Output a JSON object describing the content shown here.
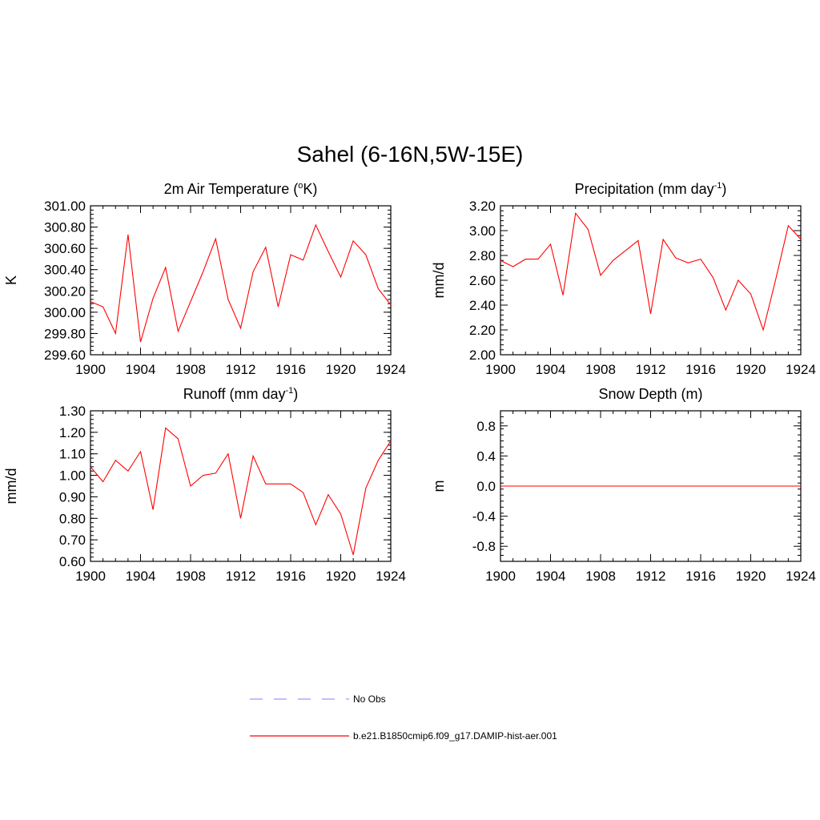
{
  "figure_title": "Sahel (6-16N,5W-15E)",
  "colors": {
    "model": "#ff0000",
    "obs": "#9999ff",
    "axis": "#000000"
  },
  "legend": {
    "items": [
      {
        "label": "No Obs",
        "style": "dashed",
        "color": "#9999ff"
      },
      {
        "label": "b.e21.B1850cmip6.f09_g17.DAMIP-hist-aer.001",
        "style": "solid",
        "color": "#ff0000"
      }
    ]
  },
  "chart_data": [
    {
      "type": "line",
      "title": "2m Air Temperature (",
      "title_sup": "o",
      "title_suffix": "K)",
      "ylabel": "K",
      "xlim": [
        1900,
        1924
      ],
      "ylim": [
        299.6,
        301.0
      ],
      "xticks": [
        1900,
        1904,
        1908,
        1912,
        1916,
        1920,
        1924
      ],
      "yticks": [
        "299.60",
        "299.80",
        "300.00",
        "300.20",
        "300.40",
        "300.60",
        "300.80",
        "301.00"
      ],
      "grid": false,
      "series": [
        {
          "name": "b.e21.B1850cmip6.f09_g17.DAMIP-hist-aer.001",
          "x": [
            1900,
            1901,
            1902,
            1903,
            1904,
            1905,
            1906,
            1907,
            1908,
            1909,
            1910,
            1911,
            1912,
            1913,
            1914,
            1915,
            1916,
            1917,
            1918,
            1919,
            1920,
            1921,
            1922,
            1923,
            1924
          ],
          "y": [
            300.1,
            300.05,
            299.8,
            300.73,
            299.72,
            300.13,
            300.42,
            299.82,
            300.1,
            300.38,
            300.69,
            300.12,
            299.85,
            300.38,
            300.61,
            300.05,
            300.54,
            300.49,
            300.82,
            300.57,
            300.33,
            300.67,
            300.54,
            300.22,
            300.07
          ]
        }
      ]
    },
    {
      "type": "line",
      "title": "Precipitation (mm day",
      "title_sup": "-1",
      "title_suffix": ")",
      "ylabel": "mm/d",
      "xlim": [
        1900,
        1924
      ],
      "ylim": [
        2.0,
        3.2
      ],
      "xticks": [
        1900,
        1904,
        1908,
        1912,
        1916,
        1920,
        1924
      ],
      "yticks": [
        "2.00",
        "2.20",
        "2.40",
        "2.60",
        "2.80",
        "3.00",
        "3.20"
      ],
      "grid": false,
      "series": [
        {
          "name": "b.e21.B1850cmip6.f09_g17.DAMIP-hist-aer.001",
          "x": [
            1900,
            1901,
            1902,
            1903,
            1904,
            1905,
            1906,
            1907,
            1908,
            1909,
            1910,
            1911,
            1912,
            1913,
            1914,
            1915,
            1916,
            1917,
            1918,
            1919,
            1920,
            1921,
            1922,
            1923,
            1924
          ],
          "y": [
            2.76,
            2.71,
            2.77,
            2.77,
            2.89,
            2.48,
            3.14,
            3.01,
            2.64,
            2.76,
            2.84,
            2.92,
            2.33,
            2.93,
            2.78,
            2.74,
            2.77,
            2.62,
            2.36,
            2.6,
            2.49,
            2.2,
            2.61,
            3.04,
            2.93
          ]
        }
      ]
    },
    {
      "type": "line",
      "title": "Runoff (mm day",
      "title_sup": "-1",
      "title_suffix": ")",
      "ylabel": "mm/d",
      "xlim": [
        1900,
        1924
      ],
      "ylim": [
        0.6,
        1.3
      ],
      "xticks": [
        1900,
        1904,
        1908,
        1912,
        1916,
        1920,
        1924
      ],
      "yticks": [
        "0.60",
        "0.70",
        "0.80",
        "0.90",
        "1.00",
        "1.10",
        "1.20",
        "1.30"
      ],
      "grid": false,
      "series": [
        {
          "name": "b.e21.B1850cmip6.f09_g17.DAMIP-hist-aer.001",
          "x": [
            1900,
            1901,
            1902,
            1903,
            1904,
            1905,
            1906,
            1907,
            1908,
            1909,
            1910,
            1911,
            1912,
            1913,
            1914,
            1915,
            1916,
            1917,
            1918,
            1919,
            1920,
            1921,
            1922,
            1923,
            1924
          ],
          "y": [
            1.04,
            0.97,
            1.07,
            1.02,
            1.11,
            0.84,
            1.22,
            1.17,
            0.95,
            1.0,
            1.01,
            1.1,
            0.8,
            1.09,
            0.96,
            0.96,
            0.96,
            0.92,
            0.77,
            0.91,
            0.82,
            0.63,
            0.94,
            1.07,
            1.16
          ]
        }
      ]
    },
    {
      "type": "line",
      "title": "Snow Depth (m)",
      "title_sup": "",
      "title_suffix": "",
      "ylabel": "m",
      "xlim": [
        1900,
        1924
      ],
      "ylim": [
        -1.0,
        1.0
      ],
      "xticks": [
        1900,
        1904,
        1908,
        1912,
        1916,
        1920,
        1924
      ],
      "yticks": [
        "-0.8",
        "-0.4",
        "0.0",
        "0.4",
        "0.8"
      ],
      "grid": false,
      "series": [
        {
          "name": "b.e21.B1850cmip6.f09_g17.DAMIP-hist-aer.001",
          "x": [
            1900,
            1901,
            1902,
            1903,
            1904,
            1905,
            1906,
            1907,
            1908,
            1909,
            1910,
            1911,
            1912,
            1913,
            1914,
            1915,
            1916,
            1917,
            1918,
            1919,
            1920,
            1921,
            1922,
            1923,
            1924
          ],
          "y": [
            0,
            0,
            0,
            0,
            0,
            0,
            0,
            0,
            0,
            0,
            0,
            0,
            0,
            0,
            0,
            0,
            0,
            0,
            0,
            0,
            0,
            0,
            0,
            0,
            0
          ]
        }
      ]
    }
  ]
}
